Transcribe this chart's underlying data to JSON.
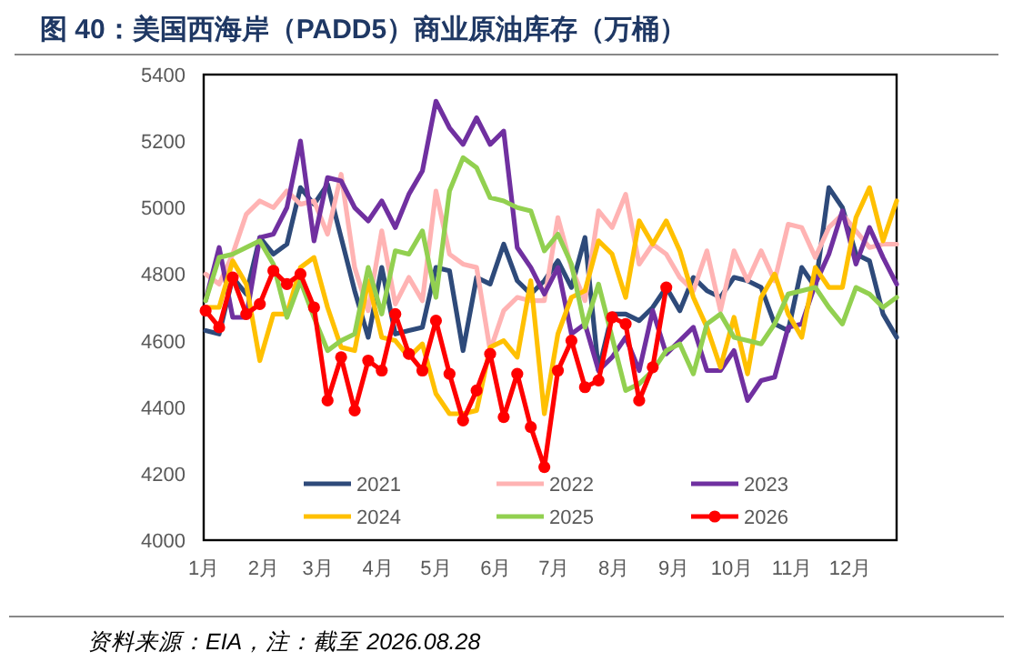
{
  "chart_data": {
    "type": "line",
    "title": "图 40：美国西海岸（PADD5）商业原油库存（万桶）",
    "annotations": [
      "资料来源：EIA，注：截至 2026.08.28"
    ],
    "x": [
      "--01-02",
      "--01-09",
      "--01-16",
      "--01-23",
      "--01-30",
      "--02-06",
      "--02-13",
      "--02-20",
      "--02-27",
      "--03-06",
      "--03-13",
      "--03-20",
      "--03-27",
      "--04-03",
      "--04-10",
      "--04-17",
      "--04-24",
      "--05-01",
      "--05-08",
      "--05-15",
      "--05-22",
      "--05-29",
      "--06-05",
      "--06-12",
      "--06-19",
      "--06-26",
      "--07-03",
      "--07-10",
      "--07-17",
      "--07-24",
      "--07-31",
      "--08-07",
      "--08-14",
      "--08-21",
      "--08-28",
      "--09-04",
      "--09-11",
      "--09-18",
      "--09-25",
      "--10-02",
      "--10-09",
      "--10-16",
      "--10-23",
      "--10-30",
      "--11-06",
      "--11-13",
      "--11-20",
      "--11-27",
      "--12-04",
      "--12-11",
      "--12-18",
      "--12-25"
    ],
    "xlim": [
      "--01-01",
      "--12-25"
    ],
    "xticks": [
      {
        "value": "--01-01",
        "label": "1月"
      },
      {
        "value": "--02-01",
        "label": "2月"
      },
      {
        "value": "--03-01",
        "label": "3月"
      },
      {
        "value": "--04-01",
        "label": "4月"
      },
      {
        "value": "--05-01",
        "label": "5月"
      },
      {
        "value": "--06-01",
        "label": "6月"
      },
      {
        "value": "--07-01",
        "label": "7月"
      },
      {
        "value": "--08-01",
        "label": "8月"
      },
      {
        "value": "--09-01",
        "label": "9月"
      },
      {
        "value": "--10-01",
        "label": "10月"
      },
      {
        "value": "--11-01",
        "label": "11月"
      },
      {
        "value": "--12-01",
        "label": "12月"
      }
    ],
    "ylim": [
      4000,
      5400
    ],
    "yticks": [
      4000,
      4200,
      4400,
      4600,
      4800,
      5000,
      5200,
      5400
    ],
    "legend": "bottom",
    "series": [
      {
        "name": "2021",
        "color": "#2e4a7a",
        "values": [
          4630,
          4620,
          4790,
          4740,
          4910,
          4860,
          4890,
          5060,
          5010,
          5070,
          4910,
          4750,
          4610,
          4820,
          4620,
          4630,
          4640,
          4820,
          4810,
          4570,
          4790,
          4770,
          4890,
          4780,
          4740,
          4780,
          4840,
          4760,
          4910,
          4510,
          4680,
          4680,
          4660,
          4700,
          4760,
          4690,
          4790,
          4750,
          4730,
          4790,
          4780,
          4760,
          4650,
          4630,
          4820,
          4760,
          5060,
          5000,
          4860,
          4840,
          4680,
          4610
        ]
      },
      {
        "name": "2022",
        "color": "#ffb3b3",
        "values": [
          4800,
          4770,
          4860,
          4980,
          5020,
          5000,
          5050,
          5010,
          5020,
          4920,
          5100,
          4820,
          4690,
          4930,
          4710,
          4790,
          4720,
          5050,
          4860,
          4830,
          4820,
          4570,
          4690,
          4730,
          4720,
          4720,
          4970,
          4820,
          4720,
          4990,
          4940,
          5040,
          4830,
          4890,
          4860,
          4790,
          4750,
          4870,
          4690,
          4870,
          4780,
          4870,
          4780,
          4950,
          4940,
          4850,
          4940,
          4980,
          4930,
          4880,
          4890,
          4890
        ]
      },
      {
        "name": "2023",
        "color": "#7030a0",
        "values": [
          4720,
          4880,
          4670,
          4670,
          4910,
          4920,
          5000,
          5200,
          4900,
          5090,
          5080,
          5000,
          4960,
          5020,
          4940,
          5040,
          5110,
          5320,
          5240,
          5190,
          5270,
          5190,
          5230,
          4880,
          4820,
          4740,
          4820,
          4620,
          4650,
          4510,
          4550,
          4610,
          4510,
          4690,
          4560,
          4600,
          4640,
          4510,
          4510,
          4570,
          4420,
          4480,
          4490,
          4640,
          4650,
          4770,
          4860,
          4990,
          4830,
          4940,
          4850,
          4770
        ]
      },
      {
        "name": "2024",
        "color": "#ffc000",
        "values": [
          4700,
          4700,
          4840,
          4770,
          4540,
          4680,
          4680,
          4820,
          4850,
          4700,
          4580,
          4570,
          4780,
          4610,
          4600,
          4550,
          4590,
          4440,
          4380,
          4380,
          4390,
          4580,
          4600,
          4550,
          4780,
          4380,
          4620,
          4730,
          4750,
          4900,
          4860,
          4730,
          4960,
          4890,
          4960,
          4870,
          4730,
          4640,
          4520,
          4670,
          4500,
          4730,
          4800,
          4680,
          4610,
          4820,
          4760,
          4760,
          4970,
          5060,
          4900,
          5020
        ]
      },
      {
        "name": "2025",
        "color": "#92d050",
        "values": [
          4720,
          4850,
          4860,
          4880,
          4900,
          4830,
          4670,
          4780,
          4670,
          4570,
          4600,
          4620,
          4820,
          4680,
          4870,
          4860,
          4930,
          4730,
          5050,
          5150,
          5120,
          5030,
          5020,
          5000,
          4990,
          4870,
          4920,
          4830,
          4640,
          4770,
          4610,
          4450,
          4470,
          4510,
          4570,
          4590,
          4500,
          4650,
          4680,
          4610,
          4600,
          4590,
          4650,
          4740,
          4750,
          4760,
          4700,
          4650,
          4760,
          4740,
          4700,
          4730
        ]
      },
      {
        "name": "2026",
        "color": "#ff0000",
        "marker": "circle",
        "values": [
          4690,
          4640,
          4790,
          4680,
          4710,
          4810,
          4770,
          4800,
          4700,
          4420,
          4550,
          4390,
          4540,
          4510,
          4680,
          4560,
          4510,
          4660,
          4500,
          4360,
          4450,
          4560,
          4370,
          4500,
          4340,
          4220,
          4510,
          4600,
          4460,
          4480,
          4670,
          4650,
          4420,
          4520,
          4760,
          null,
          null,
          null,
          null,
          null,
          null,
          null,
          null,
          null,
          null,
          null,
          null,
          null,
          null,
          null,
          null,
          null
        ]
      }
    ]
  }
}
